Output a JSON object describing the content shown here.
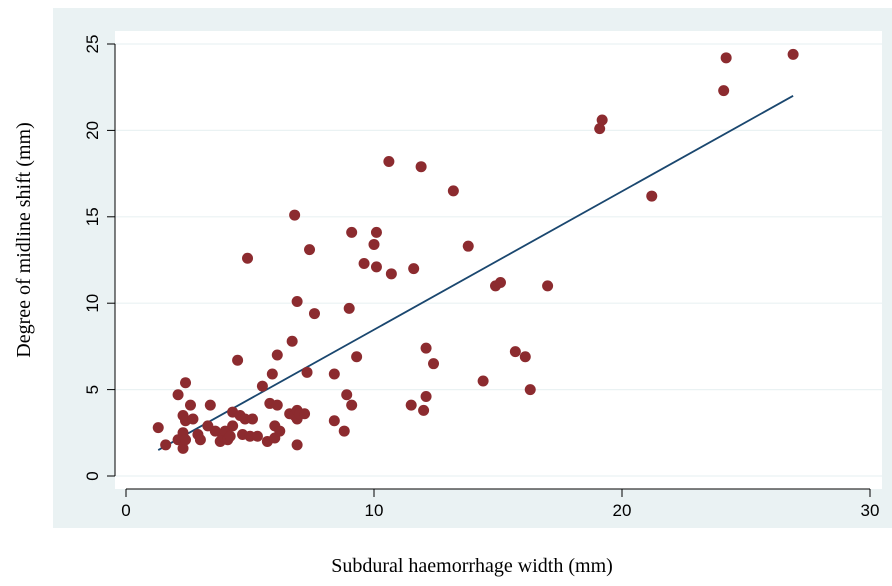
{
  "chart_data": {
    "type": "scatter",
    "xlabel": "Subdural haemorrhage width (mm)",
    "ylabel": "Degree of midline shift (mm)",
    "xlim": [
      0,
      30
    ],
    "ylim": [
      0,
      25
    ],
    "xticks": [
      0,
      10,
      20,
      30
    ],
    "yticks": [
      0,
      5,
      10,
      15,
      20,
      25
    ],
    "grid": "horizontal",
    "legend": "none",
    "colors": {
      "outer_background": "#eaf2f3",
      "plot_background": "#ffffff",
      "gridline": "#eaf2f3",
      "marker": "#8c2b2f",
      "fit_line": "#1a476f"
    },
    "series": [
      {
        "kind": "points",
        "points": [
          [
            1.3,
            2.8
          ],
          [
            1.6,
            1.8
          ],
          [
            2.1,
            2.1
          ],
          [
            2.1,
            4.7
          ],
          [
            2.3,
            3.5
          ],
          [
            2.3,
            2.5
          ],
          [
            2.3,
            1.6
          ],
          [
            2.4,
            5.4
          ],
          [
            2.4,
            3.2
          ],
          [
            2.4,
            2.1
          ],
          [
            2.6,
            4.1
          ],
          [
            2.7,
            3.3
          ],
          [
            2.9,
            2.4
          ],
          [
            3.0,
            2.1
          ],
          [
            3.3,
            2.9
          ],
          [
            3.4,
            4.1
          ],
          [
            3.6,
            2.6
          ],
          [
            3.8,
            2.0
          ],
          [
            3.9,
            2.3
          ],
          [
            4.0,
            2.6
          ],
          [
            4.1,
            2.1
          ],
          [
            4.2,
            2.3
          ],
          [
            4.3,
            2.9
          ],
          [
            4.3,
            3.7
          ],
          [
            4.5,
            6.7
          ],
          [
            4.6,
            3.5
          ],
          [
            4.7,
            2.4
          ],
          [
            4.8,
            3.3
          ],
          [
            4.9,
            12.6
          ],
          [
            5.0,
            2.3
          ],
          [
            5.1,
            3.3
          ],
          [
            5.3,
            2.3
          ],
          [
            5.5,
            5.2
          ],
          [
            5.7,
            2.0
          ],
          [
            5.8,
            4.2
          ],
          [
            5.9,
            5.9
          ],
          [
            6.0,
            2.2
          ],
          [
            6.0,
            2.9
          ],
          [
            6.1,
            7.0
          ],
          [
            6.1,
            4.1
          ],
          [
            6.2,
            2.6
          ],
          [
            6.6,
            3.6
          ],
          [
            6.7,
            7.8
          ],
          [
            6.8,
            15.1
          ],
          [
            6.8,
            3.5
          ],
          [
            6.9,
            3.8
          ],
          [
            6.9,
            3.3
          ],
          [
            6.9,
            1.8
          ],
          [
            6.9,
            10.1
          ],
          [
            7.0,
            3.6
          ],
          [
            7.2,
            3.6
          ],
          [
            7.3,
            6.0
          ],
          [
            7.4,
            13.1
          ],
          [
            7.6,
            9.4
          ],
          [
            8.4,
            5.9
          ],
          [
            8.4,
            3.2
          ],
          [
            8.8,
            2.6
          ],
          [
            8.9,
            4.7
          ],
          [
            9.0,
            9.7
          ],
          [
            9.1,
            4.1
          ],
          [
            9.1,
            14.1
          ],
          [
            9.3,
            6.9
          ],
          [
            9.6,
            12.3
          ],
          [
            10.0,
            13.4
          ],
          [
            10.1,
            12.1
          ],
          [
            10.1,
            14.1
          ],
          [
            10.6,
            18.2
          ],
          [
            10.7,
            11.7
          ],
          [
            11.5,
            4.1
          ],
          [
            11.6,
            12.0
          ],
          [
            11.9,
            17.9
          ],
          [
            12.0,
            3.8
          ],
          [
            12.1,
            7.4
          ],
          [
            12.1,
            4.6
          ],
          [
            12.4,
            6.5
          ],
          [
            13.2,
            16.5
          ],
          [
            13.8,
            13.3
          ],
          [
            14.4,
            5.5
          ],
          [
            14.9,
            11.0
          ],
          [
            15.1,
            11.2
          ],
          [
            15.7,
            7.2
          ],
          [
            16.1,
            6.9
          ],
          [
            16.3,
            5.0
          ],
          [
            17.0,
            11.0
          ],
          [
            19.1,
            20.1
          ],
          [
            19.2,
            20.6
          ],
          [
            21.2,
            16.2
          ],
          [
            24.1,
            22.3
          ],
          [
            24.2,
            24.2
          ],
          [
            26.9,
            24.4
          ]
        ]
      },
      {
        "kind": "fit-line",
        "points": [
          [
            1.3,
            1.5
          ],
          [
            26.9,
            22.0
          ]
        ]
      }
    ]
  }
}
